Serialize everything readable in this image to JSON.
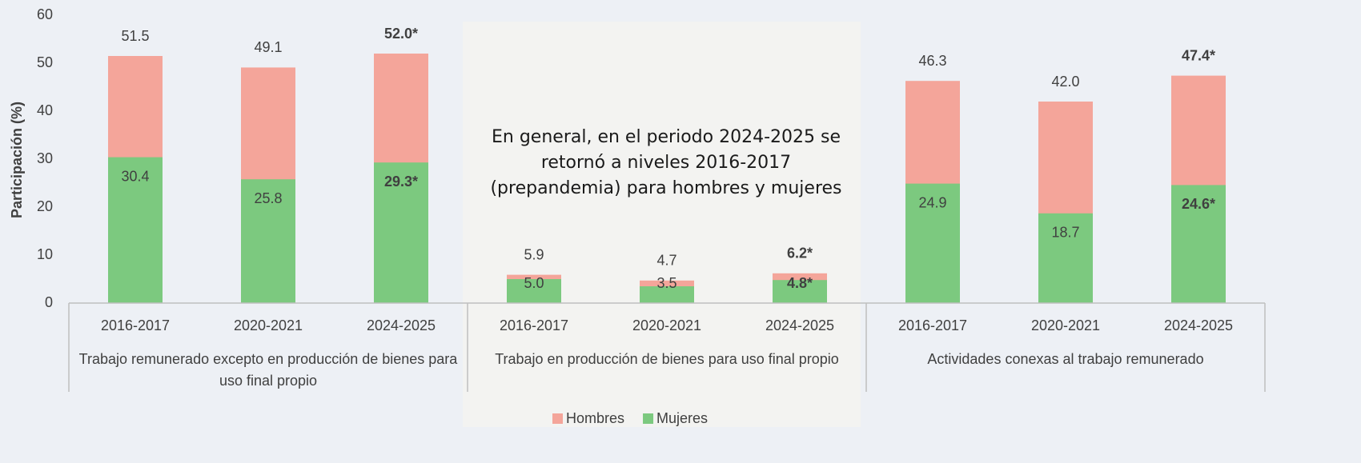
{
  "chart_data": {
    "type": "bar",
    "y_label": "Participación (%)",
    "annotation": "En general, en el periodo 2024-2025 se retornó a niveles 2016-2017 (prepandemia) para hombres y mujeres",
    "groups": [
      "Trabajo remunerado excepto en producción de bienes para uso final propio",
      "Trabajo en producción de bienes para uso final propio",
      "Actividades conexas al trabajo remunerado"
    ],
    "categories": [
      "2016-2017",
      "2020-2021",
      "2024-2025",
      "2016-2017",
      "2020-2021",
      "2024-2025",
      "2016-2017",
      "2020-2021",
      "2024-2025"
    ],
    "series": [
      {
        "name": "Hombres",
        "color": "#f4a59a",
        "values": [
          51.5,
          49.1,
          52.0,
          5.9,
          4.7,
          6.2,
          46.3,
          42.0,
          47.4
        ],
        "value_labels": [
          "51.5",
          "49.1",
          "52.0*",
          "5.9",
          "4.7",
          "6.2*",
          "46.3",
          "42.0",
          "47.4*"
        ]
      },
      {
        "name": "Mujeres",
        "color": "#7cc97f",
        "values": [
          30.4,
          25.8,
          29.3,
          5.0,
          3.5,
          4.8,
          24.9,
          18.7,
          24.6
        ],
        "value_labels": [
          "30.4",
          "25.8",
          "29.3*",
          "5.0",
          "3.5",
          "4.8*",
          "24.9",
          "18.7",
          "24.6*"
        ]
      }
    ],
    "ylim": [
      0,
      60
    ],
    "yticks": [
      0,
      10,
      20,
      30,
      40,
      50,
      60
    ],
    "grid": false,
    "legend": "bottom"
  }
}
